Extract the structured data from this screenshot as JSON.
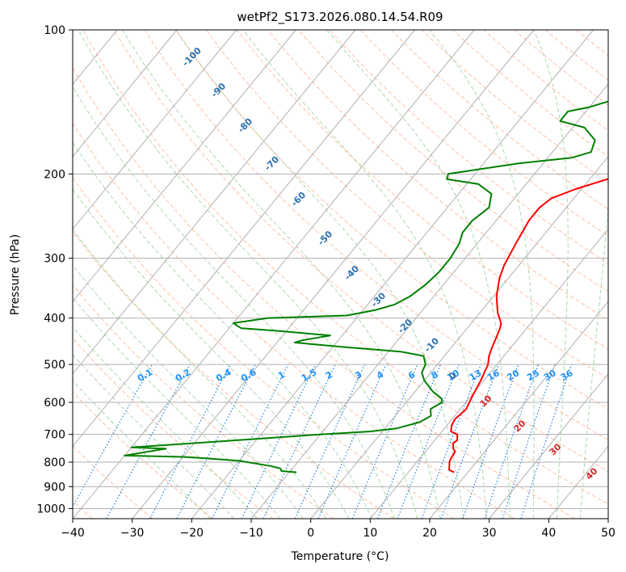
{
  "chart_data": {
    "type": "line",
    "title": "wetPf2_S173.2026.080.14.54.R09",
    "xlabel": "Temperature (°C)",
    "ylabel": "Pressure (hPa)",
    "xlim": [
      -40,
      50
    ],
    "ylim": [
      1050,
      100
    ],
    "y_scale": "log",
    "grid": true,
    "x_ticks": [
      -40,
      -30,
      -20,
      -10,
      0,
      10,
      20,
      30,
      40,
      50
    ],
    "y_ticks": [
      100,
      200,
      300,
      400,
      500,
      600,
      700,
      800,
      900,
      1000
    ],
    "dry_adiabat_labels": [
      "-100",
      "-90",
      "-80",
      "-70",
      "-60",
      "-50",
      "-40",
      "-30",
      "-20",
      "-10",
      "0"
    ],
    "mixing_ratio_labels": [
      "0.1",
      "0.2",
      "0.4",
      "0.6",
      "1",
      "1.5",
      "2",
      "3",
      "4",
      "6",
      "8",
      "10",
      "13",
      "16",
      "20",
      "25",
      "30",
      "36"
    ],
    "moist_adiabat_labels": [
      "10",
      "20",
      "30",
      "40"
    ],
    "series": [
      {
        "kind": "temperature",
        "color": "#ff0000",
        "points": [
          [
            17.7,
            840
          ],
          [
            16.5,
            830
          ],
          [
            16.2,
            820
          ],
          [
            15.5,
            800
          ],
          [
            15.3,
            790
          ],
          [
            15.0,
            760
          ],
          [
            14.3,
            750
          ],
          [
            13.5,
            730
          ],
          [
            13.8,
            720
          ],
          [
            13.0,
            700
          ],
          [
            11.5,
            690
          ],
          [
            10.8,
            670
          ],
          [
            10.5,
            650
          ],
          [
            11.0,
            620
          ],
          [
            10.2,
            580
          ],
          [
            9.5,
            540
          ],
          [
            8.5,
            500
          ],
          [
            7.5,
            480
          ],
          [
            6.8,
            460
          ],
          [
            6.2,
            440
          ],
          [
            5.5,
            420
          ],
          [
            5.0,
            410
          ],
          [
            3.0,
            390
          ],
          [
            0.5,
            360
          ],
          [
            -1.5,
            330
          ],
          [
            -2.5,
            310
          ],
          [
            -3.5,
            280
          ],
          [
            -4.5,
            250
          ],
          [
            -4.5,
            235
          ],
          [
            -3.8,
            225
          ],
          [
            -1.0,
            215
          ],
          [
            3.0,
            205
          ],
          [
            6.0,
            195
          ],
          [
            8.5,
            185
          ],
          [
            9.2,
            175
          ],
          [
            9.0,
            165
          ],
          [
            10.0,
            155
          ],
          [
            12.0,
            150
          ],
          [
            13.0,
            145
          ],
          [
            13.5,
            140
          ],
          [
            13.2,
            135
          ],
          [
            13.6,
            130
          ],
          [
            15.5,
            125
          ],
          [
            17.5,
            120
          ],
          [
            18.0,
            115
          ],
          [
            18.0,
            110
          ],
          [
            18.5,
            105
          ],
          [
            19.5,
            100
          ]
        ]
      },
      {
        "kind": "dewpoint",
        "color": "#008000",
        "points": [
          [
            -8.8,
            840
          ],
          [
            -11.5,
            835
          ],
          [
            -12.0,
            825
          ],
          [
            -14.0,
            815
          ],
          [
            -20.0,
            795
          ],
          [
            -26.0,
            785
          ],
          [
            -30.0,
            780
          ],
          [
            -40.0,
            775
          ],
          [
            -34.0,
            750
          ],
          [
            -40.0,
            745
          ],
          [
            -30.0,
            730
          ],
          [
            -20.0,
            715
          ],
          [
            -10.0,
            700
          ],
          [
            -2.0,
            690
          ],
          [
            2.0,
            680
          ],
          [
            5.0,
            660
          ],
          [
            6.0,
            640
          ],
          [
            5.0,
            620
          ],
          [
            6.0,
            600
          ],
          [
            5.5,
            590
          ],
          [
            3.0,
            570
          ],
          [
            0.0,
            540
          ],
          [
            -1.5,
            520
          ],
          [
            -2.0,
            500
          ],
          [
            -3.5,
            480
          ],
          [
            -8.0,
            470
          ],
          [
            -18.0,
            460
          ],
          [
            -27.0,
            450
          ],
          [
            -26.0,
            445
          ],
          [
            -22.0,
            435
          ],
          [
            -27.0,
            430
          ],
          [
            -32.0,
            425
          ],
          [
            -38.0,
            420
          ],
          [
            -40.0,
            410
          ],
          [
            -35.0,
            400
          ],
          [
            -22.0,
            395
          ],
          [
            -18.0,
            385
          ],
          [
            -15.5,
            375
          ],
          [
            -14.0,
            360
          ],
          [
            -13.0,
            340
          ],
          [
            -12.5,
            320
          ],
          [
            -12.5,
            300
          ],
          [
            -13.0,
            280
          ],
          [
            -14.0,
            265
          ],
          [
            -14.0,
            250
          ],
          [
            -13.0,
            235
          ],
          [
            -14.5,
            220
          ],
          [
            -18.0,
            210
          ],
          [
            -24.0,
            205
          ],
          [
            -24.5,
            200
          ],
          [
            -14.0,
            190
          ],
          [
            -6.0,
            185
          ],
          [
            -3.5,
            180
          ],
          [
            -4.5,
            170
          ],
          [
            -8.0,
            160
          ],
          [
            -13.0,
            155
          ],
          [
            -13.0,
            148
          ],
          [
            -10.0,
            145
          ],
          [
            -7.0,
            140
          ],
          [
            -5.5,
            130
          ],
          [
            -3.5,
            120
          ],
          [
            -0.5,
            110
          ],
          [
            0.5,
            100
          ]
        ]
      }
    ]
  }
}
